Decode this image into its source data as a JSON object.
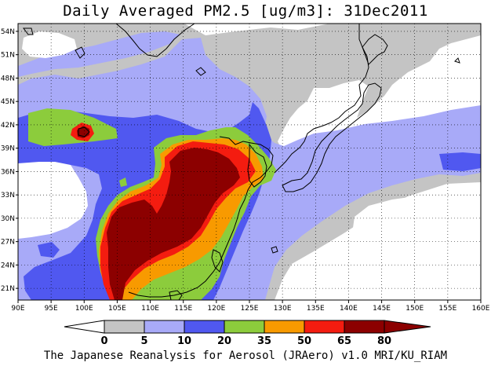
{
  "title": "Daily Averaged PM2.5 [ug/m3]: 31Dec2011",
  "footer": "The Japanese Reanalysis for Aerosol (JRAero) v1.0 MRI/KU_RIAM",
  "map": {
    "lon_range": [
      90,
      160
    ],
    "lat_range": [
      19.5,
      55
    ],
    "lon_ticks": [
      "90E",
      "95E",
      "100E",
      "105E",
      "110E",
      "115E",
      "120E",
      "125E",
      "130E",
      "135E",
      "140E",
      "145E",
      "150E",
      "155E",
      "160E"
    ],
    "lat_ticks": [
      "21N",
      "24N",
      "27N",
      "30N",
      "33N",
      "36N",
      "39N",
      "42N",
      "45N",
      "48N",
      "51N",
      "54N"
    ],
    "grid": true,
    "grid_style": "dotted"
  },
  "colorbar": {
    "labels": [
      "0",
      "5",
      "10",
      "20",
      "35",
      "50",
      "65",
      "80"
    ],
    "colors": [
      "#ffffff",
      "#c4c4c4",
      "#a8aaf8",
      "#5058f0",
      "#8ccc3c",
      "#f89a00",
      "#f41c10",
      "#8c0000"
    ],
    "extends": "both",
    "units": "ug/m3"
  },
  "colors": {
    "white": "#ffffff",
    "gray": "#c4c4c4",
    "lavender": "#a8aaf8",
    "blue": "#5058f0",
    "green": "#8ccc3c",
    "orange": "#f89a00",
    "red": "#f41c10",
    "darkred": "#8c0000"
  }
}
